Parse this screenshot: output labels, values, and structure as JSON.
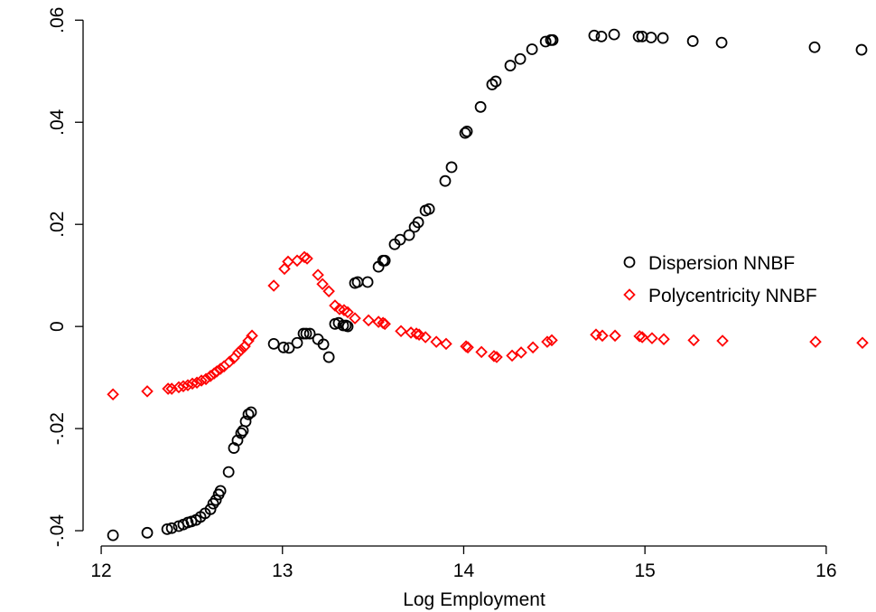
{
  "chart_data": {
    "type": "scatter",
    "x_label": "Log Employment",
    "xlim": [
      11.9,
      16.22
    ],
    "ylim": [
      -0.043,
      0.062
    ],
    "xticks": [
      12,
      13,
      14,
      15,
      16
    ],
    "yticks": [
      {
        "value": -0.04,
        "label": "-.04"
      },
      {
        "value": -0.02,
        "label": "-.02"
      },
      0,
      {
        "value": 0.02,
        "label": ".02"
      },
      {
        "value": 0.04,
        "label": ".04"
      },
      {
        "value": 0.06,
        "label": ".06"
      }
    ],
    "grid": false,
    "legend": "right",
    "series": [
      {
        "name": "Dispersion NNBF",
        "color": "#000000",
        "marker": "circle",
        "x": [
          12.065,
          12.254,
          12.364,
          12.389,
          12.428,
          12.453,
          12.478,
          12.498,
          12.523,
          12.548,
          12.573,
          12.603,
          12.618,
          12.633,
          12.648,
          12.658,
          12.703,
          12.732,
          12.752,
          12.772,
          12.782,
          12.797,
          12.812,
          12.827,
          12.952,
          13.006,
          13.036,
          13.081,
          13.116,
          13.131,
          13.151,
          13.196,
          13.226,
          13.256,
          13.29,
          13.31,
          13.335,
          13.35,
          13.36,
          13.4,
          13.415,
          13.47,
          13.53,
          13.555,
          13.565,
          13.619,
          13.649,
          13.699,
          13.729,
          13.749,
          13.789,
          13.809,
          13.898,
          13.933,
          14.008,
          14.018,
          14.093,
          14.157,
          14.177,
          14.257,
          14.312,
          14.377,
          14.452,
          14.481,
          14.491,
          14.72,
          14.76,
          14.83,
          14.965,
          14.985,
          15.034,
          15.099,
          15.264,
          15.423,
          15.936,
          16.195
        ],
        "values": [
          -0.0409,
          -0.0404,
          -0.0397,
          -0.0395,
          -0.0391,
          -0.0388,
          -0.0384,
          -0.0382,
          -0.0379,
          -0.0373,
          -0.0366,
          -0.0358,
          -0.0347,
          -0.034,
          -0.0329,
          -0.0322,
          -0.0285,
          -0.0238,
          -0.0223,
          -0.0209,
          -0.0204,
          -0.0186,
          -0.0172,
          -0.0168,
          -0.0034,
          -0.0041,
          -0.0042,
          -0.0032,
          -0.0014,
          -0.0014,
          -0.0014,
          -0.0025,
          -0.0035,
          -0.006,
          0.0005,
          0.0007,
          0.0002,
          0.0002,
          0.0,
          0.0085,
          0.0087,
          0.0087,
          0.0117,
          0.0129,
          0.0129,
          0.0161,
          0.017,
          0.0179,
          0.0195,
          0.0204,
          0.0227,
          0.023,
          0.0285,
          0.0312,
          0.0379,
          0.0382,
          0.043,
          0.0474,
          0.048,
          0.0511,
          0.0524,
          0.0543,
          0.0558,
          0.0561,
          0.0561,
          0.057,
          0.0568,
          0.0572,
          0.0568,
          0.0568,
          0.0566,
          0.0565,
          0.0559,
          0.0556,
          0.0547,
          0.0542
        ]
      },
      {
        "name": "Polycentricity NNBF",
        "color": "#ff0000",
        "marker": "diamond",
        "x": [
          12.065,
          12.254,
          12.369,
          12.389,
          12.428,
          12.453,
          12.478,
          12.503,
          12.528,
          12.553,
          12.578,
          12.603,
          12.623,
          12.638,
          12.658,
          12.678,
          12.708,
          12.732,
          12.757,
          12.772,
          12.792,
          12.812,
          12.832,
          12.952,
          13.011,
          13.031,
          13.081,
          13.121,
          13.136,
          13.196,
          13.221,
          13.256,
          13.29,
          13.315,
          13.34,
          13.36,
          13.4,
          13.475,
          13.53,
          13.555,
          13.565,
          13.654,
          13.709,
          13.739,
          13.754,
          13.789,
          13.849,
          13.903,
          14.013,
          14.023,
          14.098,
          14.167,
          14.182,
          14.267,
          14.317,
          14.382,
          14.461,
          14.486,
          14.73,
          14.765,
          14.835,
          14.97,
          14.985,
          15.039,
          15.104,
          15.269,
          15.428,
          15.941,
          16.2
        ],
        "values": [
          -0.0133,
          -0.0127,
          -0.0122,
          -0.0122,
          -0.0119,
          -0.0117,
          -0.0115,
          -0.0112,
          -0.011,
          -0.0106,
          -0.0103,
          -0.0097,
          -0.0092,
          -0.0088,
          -0.0083,
          -0.0078,
          -0.0069,
          -0.0062,
          -0.0051,
          -0.0046,
          -0.0039,
          -0.0028,
          -0.0018,
          0.008,
          0.0113,
          0.0127,
          0.0129,
          0.0136,
          0.0133,
          0.0101,
          0.0083,
          0.0069,
          0.0041,
          0.0034,
          0.0032,
          0.0028,
          0.0016,
          0.0012,
          0.0009,
          0.0007,
          0.0005,
          -0.0009,
          -0.0012,
          -0.0014,
          -0.0016,
          -0.0021,
          -0.003,
          -0.0034,
          -0.0039,
          -0.0041,
          -0.005,
          -0.0058,
          -0.006,
          -0.0057,
          -0.0051,
          -0.0041,
          -0.003,
          -0.0027,
          -0.0016,
          -0.0018,
          -0.0018,
          -0.0019,
          -0.0021,
          -0.0023,
          -0.0025,
          -0.0027,
          -0.0028,
          -0.003,
          -0.0032
        ]
      }
    ]
  }
}
